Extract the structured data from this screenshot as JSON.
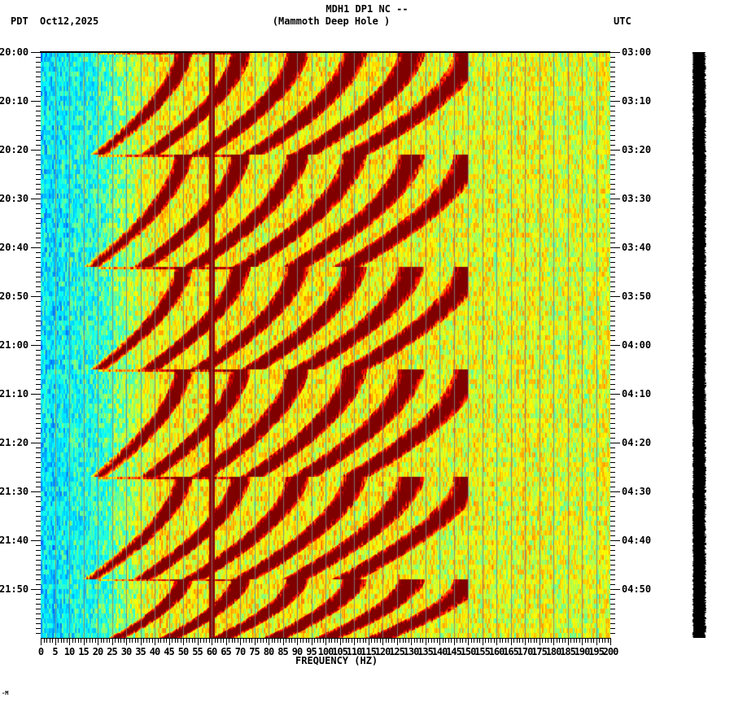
{
  "header": {
    "title_line1": "MDH1 DP1 NC --",
    "title_line2": "(Mammoth Deep Hole )",
    "left_timezone": "PDT",
    "date": "Oct12,2025",
    "right_timezone": "UTC"
  },
  "footer": {
    "corner_mark": "-M"
  },
  "chart_data": {
    "type": "heatmap",
    "title": "MDH1 DP1 NC -- (Mammoth Deep Hole )",
    "subtitle": "Oct12,2025",
    "xlabel": "FREQUENCY (HZ)",
    "ylabel_left": "PDT",
    "ylabel_right": "UTC",
    "xlim": [
      0,
      200
    ],
    "x_tick_step_minor": 1,
    "x_tick_step_major": 5,
    "x_ticks": [
      0,
      5,
      10,
      15,
      20,
      25,
      30,
      35,
      40,
      45,
      50,
      55,
      60,
      65,
      70,
      75,
      80,
      85,
      90,
      95,
      100,
      105,
      110,
      115,
      120,
      125,
      130,
      135,
      140,
      145,
      150,
      155,
      160,
      165,
      170,
      175,
      180,
      185,
      190,
      195,
      200
    ],
    "y_ticks_left": [
      "20:00",
      "20:10",
      "20:20",
      "20:30",
      "20:40",
      "20:50",
      "21:00",
      "21:10",
      "21:20",
      "21:30",
      "21:40",
      "21:50"
    ],
    "y_ticks_right": [
      "03:00",
      "03:10",
      "03:20",
      "03:30",
      "03:40",
      "03:50",
      "04:00",
      "04:10",
      "04:20",
      "04:30",
      "04:40",
      "04:50"
    ],
    "y_minor_tick_minutes": 1,
    "time_span_minutes": 120,
    "grid": "vertical gray lines every 5 Hz",
    "colormap": [
      "#0000ff",
      "#00aaff",
      "#00ffff",
      "#7fff7f",
      "#ffff00",
      "#ff9900",
      "#ff0000",
      "#800000"
    ],
    "features": {
      "low_freq_band": "blue/cyan background 0-25 Hz",
      "mid_band": "yellow/red 25-130 Hz with strong dark red arcs",
      "high_band": "yellow/orange/red speckle 130-200 Hz",
      "persistent_line_hz": 60,
      "arc_sweep_cycle_minutes": [
        21,
        22,
        21,
        22,
        20,
        14
      ],
      "arc_harmonic_spacing_hz": 20
    },
    "arc_events_start_minutes": [
      0,
      21,
      44,
      65,
      87,
      108
    ]
  }
}
